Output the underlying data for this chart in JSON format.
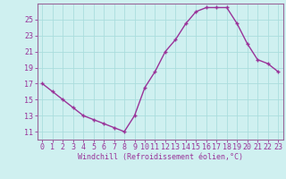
{
  "x": [
    0,
    1,
    2,
    3,
    4,
    5,
    6,
    7,
    8,
    9,
    10,
    11,
    12,
    13,
    14,
    15,
    16,
    17,
    18,
    19,
    20,
    21,
    22,
    23
  ],
  "y": [
    17,
    16,
    15,
    14,
    13,
    12.5,
    12,
    11.5,
    11,
    13,
    16.5,
    18.5,
    21,
    22.5,
    24.5,
    26,
    26.5,
    26.5,
    26.5,
    24.5,
    22,
    20,
    19.5,
    18.5
  ],
  "line_color": "#993399",
  "marker": "+",
  "marker_size": 3,
  "marker_linewidth": 1.0,
  "linewidth": 1.0,
  "xlabel": "Windchill (Refroidissement éolien,°C)",
  "xlabel_fontsize": 6,
  "xlim": [
    -0.5,
    23.5
  ],
  "ylim": [
    10.0,
    27.0
  ],
  "yticks": [
    11,
    13,
    15,
    17,
    19,
    21,
    23,
    25
  ],
  "xticks": [
    0,
    1,
    2,
    3,
    4,
    5,
    6,
    7,
    8,
    9,
    10,
    11,
    12,
    13,
    14,
    15,
    16,
    17,
    18,
    19,
    20,
    21,
    22,
    23
  ],
  "bg_color": "#cff0f0",
  "grid_color": "#aadddd",
  "tick_color": "#993399",
  "tick_fontsize": 6,
  "spine_color": "#996699"
}
